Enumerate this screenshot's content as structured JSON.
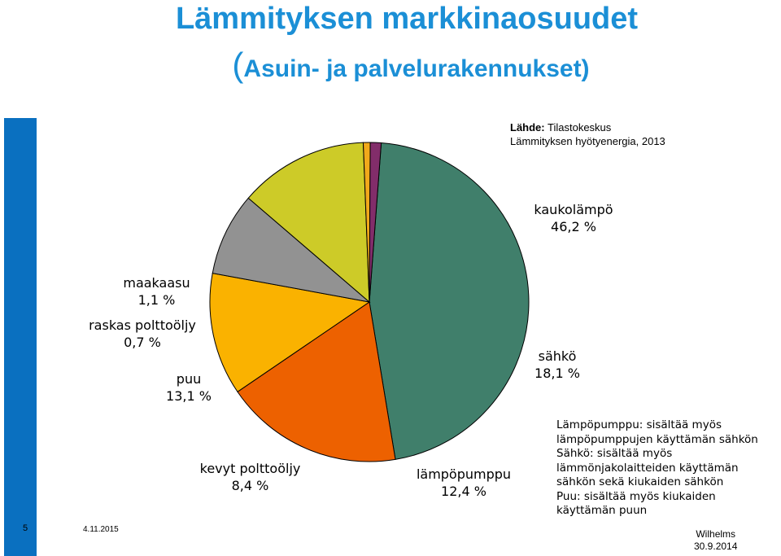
{
  "title": "Lämmityksen markkinaosuudet",
  "subtitle_paren": "(",
  "subtitle_text": "Asuin- ja palvelurakennukset)",
  "source": {
    "label": "Lähde:",
    "value": "Tilastokeskus",
    "line2": "Lämmityksen hyötyenergia, 2013"
  },
  "chart_data": {
    "type": "pie",
    "unit": "%",
    "slices": [
      {
        "label": "kaukolämpö",
        "value_text": "46,2 %",
        "value": 46.2,
        "color": "#407f6b"
      },
      {
        "label": "sähkö",
        "value_text": "18,1 %",
        "value": 18.1,
        "color": "#ed6100"
      },
      {
        "label": "lämpöpumppu",
        "value_text": "12,4 %",
        "value": 12.4,
        "color": "#fab200"
      },
      {
        "label": "kevyt polttoöljy",
        "value_text": "8,4 %",
        "value": 8.4,
        "color": "#929292"
      },
      {
        "label": "puu",
        "value_text": "13,1 %",
        "value": 13.1,
        "color": "#cdcb28"
      },
      {
        "label": "raskas polttoöljy",
        "value_text": "0,7 %",
        "value": 0.7,
        "color": "#f1a91b"
      },
      {
        "label": "maakaasu",
        "value_text": "1,1 %",
        "value": 1.1,
        "color": "#822d6a"
      }
    ]
  },
  "notes": [
    "Lämpöpumppu: sisältää myös",
    "lämpöpumppujen käyttämän sähkön",
    "Sähkö: sisältää myös",
    "lämmönjakolaitteiden käyttämän",
    "sähkön sekä kiukaiden sähkön",
    "Puu: sisältää myös kiukaiden",
    "käyttämän puun"
  ],
  "footer": {
    "slide_number": "5",
    "date": "4.11.2015",
    "author": "Wilhelms",
    "author_date": "30.9.2014"
  },
  "colors": {
    "title": "#1b8fd6",
    "side_bar": "#0a70c0"
  }
}
